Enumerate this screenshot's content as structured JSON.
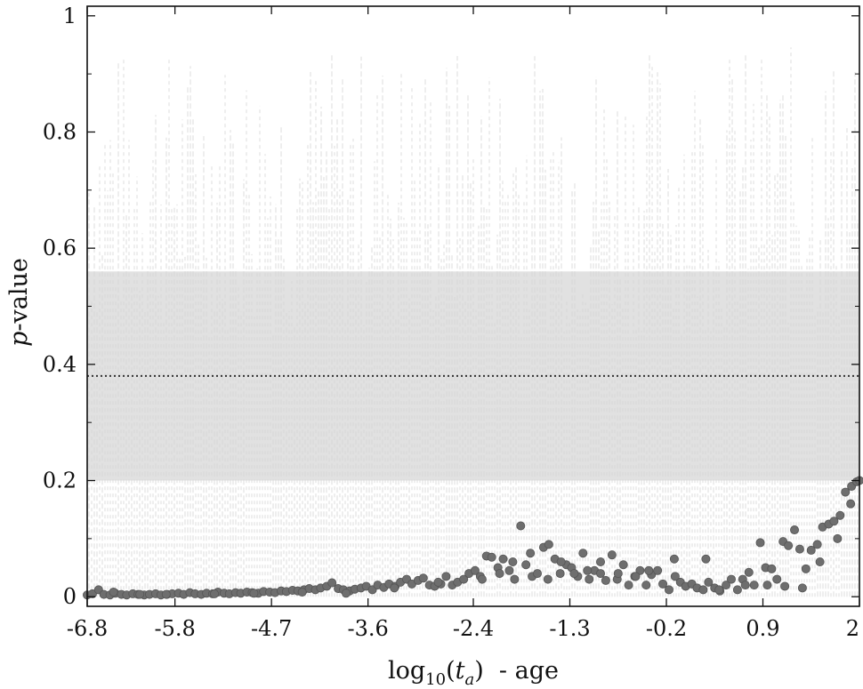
{
  "chart_data": {
    "type": "scatter",
    "title": "",
    "xlabel": {
      "main": "log",
      "sub": "10",
      "open": "(",
      "var": "t",
      "var_sub": "a",
      "close": ")",
      "suffix": "  - age"
    },
    "ylabel": {
      "var": "p",
      "suffix": "-value"
    },
    "xlim": [
      -6.8,
      2.0
    ],
    "ylim": [
      0,
      1
    ],
    "x_ticks": [
      -6.8,
      -5.8,
      -4.7,
      -3.6,
      -2.4,
      -1.3,
      -0.2,
      0.9,
      2.0
    ],
    "x_tick_labels": [
      "-6.8",
      "-5.8",
      "-4.7",
      "-3.6",
      "-2.4",
      "-1.3",
      "-0.2",
      "0.9",
      "2"
    ],
    "y_ticks": [
      0,
      0.2,
      0.4,
      0.6,
      0.8,
      1.0
    ],
    "y_tick_labels": [
      "0",
      "0.2",
      "0.4",
      "0.6",
      "0.8",
      "1"
    ],
    "grid": false,
    "reference_line": {
      "y": 0.38,
      "style": "dotted"
    },
    "shaded_band": {
      "ymin": 0.2,
      "ymax": 0.56
    },
    "background_envelope": {
      "style": "light gray dashed vertical lines",
      "ymin": 0.0,
      "ymax_range": [
        0.45,
        0.95
      ]
    },
    "colors": {
      "points": "#6e6e6e",
      "point_edge": "#555555",
      "band": "#e1e1e1",
      "envelope": "#d4d4d4",
      "axis": "#111111"
    },
    "series": [
      {
        "x": [
          -6.8,
          -6.74,
          -6.67,
          -6.61,
          -6.54,
          -6.48,
          -6.41,
          -6.35,
          -6.28,
          -6.22,
          -6.15,
          -6.09,
          -6.02,
          -5.96,
          -5.89,
          -5.83,
          -5.76,
          -5.7,
          -5.63,
          -5.57,
          -5.5,
          -5.44,
          -5.37,
          -5.31,
          -5.24,
          -5.18,
          -5.11,
          -5.05,
          -4.98,
          -4.92,
          -4.85,
          -4.79,
          -4.72,
          -4.66,
          -4.59,
          -4.53,
          -4.46,
          -4.4,
          -4.33,
          -4.27,
          -4.2,
          -4.14,
          -4.07,
          -4.01,
          -3.94,
          -3.88,
          -3.81,
          -3.75,
          -3.68,
          -3.62,
          -3.55,
          -3.49,
          -3.42,
          -3.36,
          -3.29,
          -3.23,
          -3.16,
          -3.1,
          -3.03,
          -2.97,
          -2.9,
          -2.84,
          -2.77,
          -2.71,
          -2.64,
          -2.58,
          -2.51,
          -2.45,
          -2.38,
          -2.32,
          -2.25,
          -2.19,
          -2.12,
          -2.06,
          -1.99,
          -1.93,
          -1.86,
          -1.8,
          -1.73,
          -1.67,
          -1.6,
          -1.54,
          -1.47,
          -1.41,
          -1.34,
          -1.28,
          -1.21,
          -1.15,
          -1.08,
          -1.02,
          -0.95,
          -0.89,
          -0.82,
          -0.76,
          -0.69,
          -0.63,
          -0.56,
          -0.5,
          -0.43,
          -0.37,
          -0.3,
          -0.24,
          -0.17,
          -0.11,
          -0.04,
          0.02,
          0.09,
          0.15,
          0.22,
          0.28,
          0.35,
          0.41,
          0.48,
          0.54,
          0.61,
          0.67,
          0.74,
          0.8,
          0.87,
          0.93,
          1.0,
          1.06,
          1.13,
          1.19,
          1.26,
          1.32,
          1.39,
          1.45,
          1.52,
          1.58,
          1.65,
          1.71,
          1.78,
          1.84,
          1.91,
          1.97,
          2.0,
          -6.5,
          -6.2,
          -5.9,
          -5.35,
          -4.9,
          -4.35,
          -3.85,
          -3.3,
          -2.8,
          -2.3,
          -2.1,
          -1.95,
          -1.75,
          -1.55,
          -1.4,
          -1.25,
          -1.1,
          -0.95,
          -0.75,
          -0.55,
          -0.4,
          -0.1,
          0.25,
          0.4,
          0.7,
          0.95,
          1.15,
          1.35,
          1.55,
          1.75,
          1.9
        ],
        "y": [
          0.003,
          0.005,
          0.012,
          0.004,
          0.003,
          0.006,
          0.004,
          0.003,
          0.005,
          0.004,
          0.003,
          0.004,
          0.005,
          0.003,
          0.004,
          0.005,
          0.006,
          0.004,
          0.007,
          0.005,
          0.004,
          0.006,
          0.005,
          0.008,
          0.006,
          0.005,
          0.007,
          0.006,
          0.008,
          0.007,
          0.006,
          0.009,
          0.008,
          0.007,
          0.01,
          0.009,
          0.011,
          0.01,
          0.012,
          0.014,
          0.012,
          0.015,
          0.018,
          0.024,
          0.014,
          0.012,
          0.01,
          0.013,
          0.015,
          0.018,
          0.012,
          0.02,
          0.016,
          0.022,
          0.018,
          0.025,
          0.03,
          0.022,
          0.028,
          0.032,
          0.02,
          0.018,
          0.022,
          0.035,
          0.02,
          0.025,
          0.03,
          0.04,
          0.045,
          0.035,
          0.07,
          0.068,
          0.05,
          0.065,
          0.045,
          0.03,
          0.122,
          0.055,
          0.035,
          0.04,
          0.085,
          0.09,
          0.065,
          0.04,
          0.055,
          0.05,
          0.035,
          0.075,
          0.03,
          0.045,
          0.04,
          0.028,
          0.072,
          0.03,
          0.055,
          0.02,
          0.035,
          0.045,
          0.02,
          0.038,
          0.045,
          0.022,
          0.012,
          0.065,
          0.025,
          0.018,
          0.022,
          0.015,
          0.012,
          0.025,
          0.015,
          0.01,
          0.02,
          0.03,
          0.012,
          0.03,
          0.042,
          0.02,
          0.093,
          0.05,
          0.048,
          0.03,
          0.095,
          0.088,
          0.115,
          0.082,
          0.048,
          0.08,
          0.09,
          0.12,
          0.125,
          0.13,
          0.14,
          0.18,
          0.19,
          0.198,
          0.2,
          0.008,
          0.004,
          0.004,
          0.005,
          0.006,
          0.008,
          0.006,
          0.015,
          0.025,
          0.03,
          0.04,
          0.06,
          0.075,
          0.03,
          0.06,
          0.04,
          0.045,
          0.06,
          0.04,
          0.035,
          0.045,
          0.035,
          0.065,
          0.012,
          0.02,
          0.02,
          0.018,
          0.015,
          0.06,
          0.1,
          0.16
        ]
      }
    ]
  }
}
